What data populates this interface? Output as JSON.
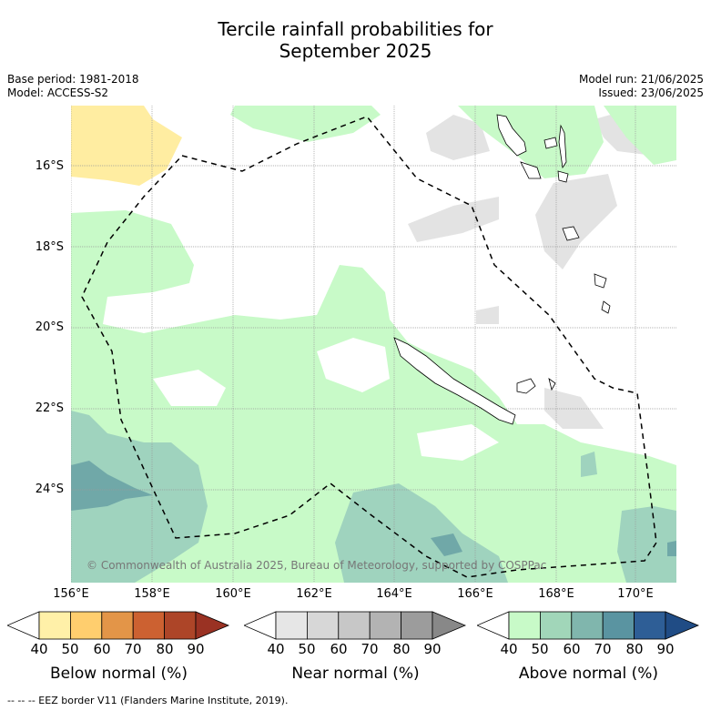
{
  "title_line1": "Tercile rainfall probabilities for",
  "title_line2": "September 2025",
  "meta_left": [
    "Base period: 1981-2018",
    "Model: ACCESS-S2"
  ],
  "meta_right": [
    "Model run: 21/06/2025",
    "Issued: 23/06/2025"
  ],
  "lat_labels": [
    "16°S",
    "18°S",
    "20°S",
    "22°S",
    "24°S"
  ],
  "lon_labels": [
    "156°E",
    "158°E",
    "160°E",
    "162°E",
    "164°E",
    "166°E",
    "168°E",
    "170°E"
  ],
  "copyright": "© Commonwealth of Australia 2025, Bureau of Meteorology, supported by COSPPac",
  "colorbars": [
    {
      "name": "Below normal (%)",
      "ticks": [
        "40",
        "50",
        "60",
        "70",
        "80",
        "90"
      ],
      "colors": [
        "#fff0a8",
        "#ffce6e",
        "#e39548",
        "#cc6131",
        "#ad4528",
        "#9a3223"
      ]
    },
    {
      "name": "Near normal (%)",
      "ticks": [
        "40",
        "50",
        "60",
        "70",
        "80",
        "90"
      ],
      "colors": [
        "#e6e6e6",
        "#d7d7d7",
        "#c7c7c7",
        "#b3b3b3",
        "#9c9c9c",
        "#888888"
      ]
    },
    {
      "name": "Above normal (%)",
      "ticks": [
        "40",
        "50",
        "60",
        "70",
        "80",
        "90"
      ],
      "colors": [
        "#c8fac8",
        "#a1d6b9",
        "#80b6ad",
        "#5a94a1",
        "#2e5e96",
        "#204c85"
      ]
    }
  ],
  "footer": "--  --  -- EEZ border V11 (Flanders Marine Institute, 2019).",
  "colors": {
    "above_50": "#c8fac8",
    "above_60": "#9fd3be",
    "above_70": "#70a8a8",
    "near_50": "#e3e3e3",
    "below_50": "#ffeda1"
  }
}
